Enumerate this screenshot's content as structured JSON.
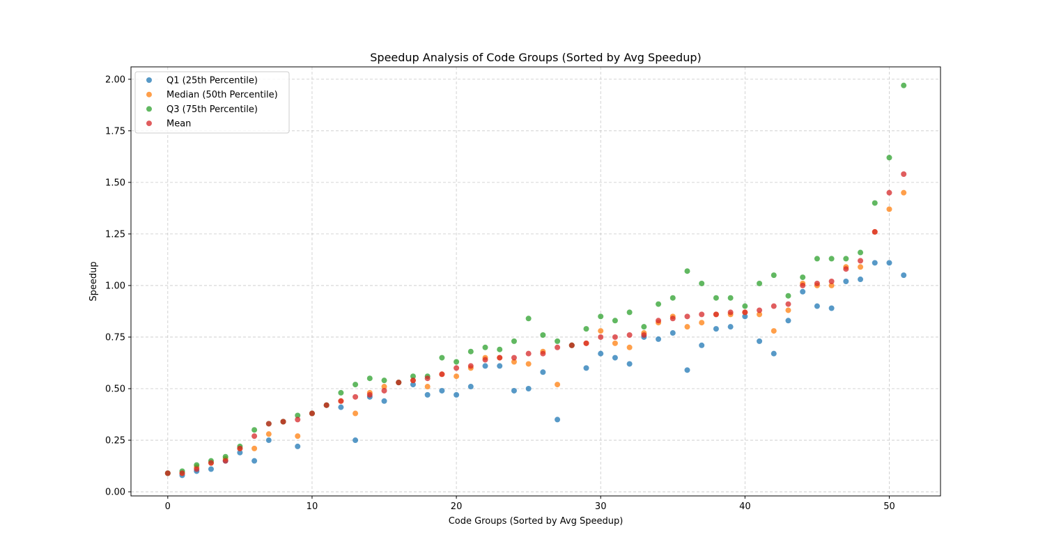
{
  "chart_data": {
    "type": "scatter",
    "title": "Speedup Analysis of Code Groups (Sorted by Avg Speedup)",
    "xlabel": "Code Groups (Sorted by Avg Speedup)",
    "ylabel": "Speedup",
    "xlim": [
      -2.55,
      53.55
    ],
    "ylim": [
      -0.02,
      2.06
    ],
    "xticks": [
      0,
      10,
      20,
      30,
      40,
      50
    ],
    "xtick_labels": [
      "0",
      "10",
      "20",
      "30",
      "40",
      "50"
    ],
    "yticks": [
      0.0,
      0.25,
      0.5,
      0.75,
      1.0,
      1.25,
      1.5,
      1.75,
      2.0
    ],
    "ytick_labels": [
      "0.00",
      "0.25",
      "0.50",
      "0.75",
      "1.00",
      "1.25",
      "1.50",
      "1.75",
      "2.00"
    ],
    "grid": true,
    "legend_position": "top-left",
    "x": [
      0,
      1,
      2,
      3,
      4,
      5,
      6,
      7,
      8,
      9,
      10,
      11,
      12,
      13,
      14,
      15,
      16,
      17,
      18,
      19,
      20,
      21,
      22,
      23,
      24,
      25,
      26,
      27,
      28,
      29,
      30,
      31,
      32,
      33,
      34,
      35,
      36,
      37,
      38,
      39,
      40,
      41,
      42,
      43,
      44,
      45,
      46,
      47,
      48,
      49,
      50,
      51
    ],
    "series": [
      {
        "name": "Q1 (25th Percentile)",
        "color": "#1f77b4",
        "values": [
          0.09,
          0.08,
          0.1,
          0.11,
          0.15,
          0.19,
          0.15,
          0.25,
          0.34,
          0.22,
          0.38,
          0.42,
          0.41,
          0.25,
          0.46,
          0.44,
          0.53,
          0.52,
          0.47,
          0.49,
          0.47,
          0.51,
          0.61,
          0.61,
          0.49,
          0.5,
          0.58,
          0.35,
          0.71,
          0.6,
          0.67,
          0.65,
          0.62,
          0.75,
          0.74,
          0.77,
          0.59,
          0.71,
          0.79,
          0.8,
          0.85,
          0.73,
          0.67,
          0.83,
          0.97,
          0.9,
          0.89,
          1.02,
          1.03,
          1.11,
          1.11,
          1.05
        ]
      },
      {
        "name": "Median (50th Percentile)",
        "color": "#ff7f0e",
        "values": [
          0.09,
          0.09,
          0.12,
          0.14,
          0.16,
          0.21,
          0.21,
          0.28,
          0.34,
          0.27,
          0.38,
          0.42,
          0.44,
          0.38,
          0.48,
          0.51,
          0.53,
          0.54,
          0.51,
          0.57,
          0.56,
          0.6,
          0.65,
          0.65,
          0.63,
          0.62,
          0.68,
          0.52,
          0.71,
          0.72,
          0.78,
          0.72,
          0.7,
          0.77,
          0.82,
          0.85,
          0.8,
          0.82,
          0.86,
          0.86,
          0.87,
          0.86,
          0.78,
          0.88,
          1.01,
          1.0,
          1.0,
          1.09,
          1.09,
          1.26,
          1.37,
          1.45
        ]
      },
      {
        "name": "Q3 (75th Percentile)",
        "color": "#2ca02c",
        "values": [
          0.09,
          0.1,
          0.13,
          0.15,
          0.17,
          0.22,
          0.3,
          0.33,
          0.34,
          0.37,
          0.38,
          0.42,
          0.48,
          0.52,
          0.55,
          0.54,
          0.53,
          0.56,
          0.56,
          0.65,
          0.63,
          0.68,
          0.7,
          0.69,
          0.73,
          0.84,
          0.76,
          0.73,
          0.71,
          0.79,
          0.85,
          0.83,
          0.87,
          0.8,
          0.91,
          0.94,
          1.07,
          1.01,
          0.94,
          0.94,
          0.9,
          1.01,
          1.05,
          0.95,
          1.04,
          1.13,
          1.13,
          1.13,
          1.16,
          1.4,
          1.62,
          1.97
        ]
      },
      {
        "name": "Mean",
        "color": "#d62728",
        "values": [
          0.09,
          0.09,
          0.11,
          0.14,
          0.15,
          0.21,
          0.27,
          0.33,
          0.34,
          0.35,
          0.38,
          0.42,
          0.44,
          0.46,
          0.47,
          0.49,
          0.53,
          0.54,
          0.55,
          0.57,
          0.6,
          0.61,
          0.64,
          0.65,
          0.65,
          0.67,
          0.67,
          0.7,
          0.71,
          0.72,
          0.75,
          0.75,
          0.76,
          0.76,
          0.83,
          0.84,
          0.85,
          0.86,
          0.86,
          0.87,
          0.87,
          0.88,
          0.9,
          0.91,
          1.0,
          1.01,
          1.02,
          1.08,
          1.12,
          1.26,
          1.45,
          1.54
        ]
      }
    ]
  }
}
